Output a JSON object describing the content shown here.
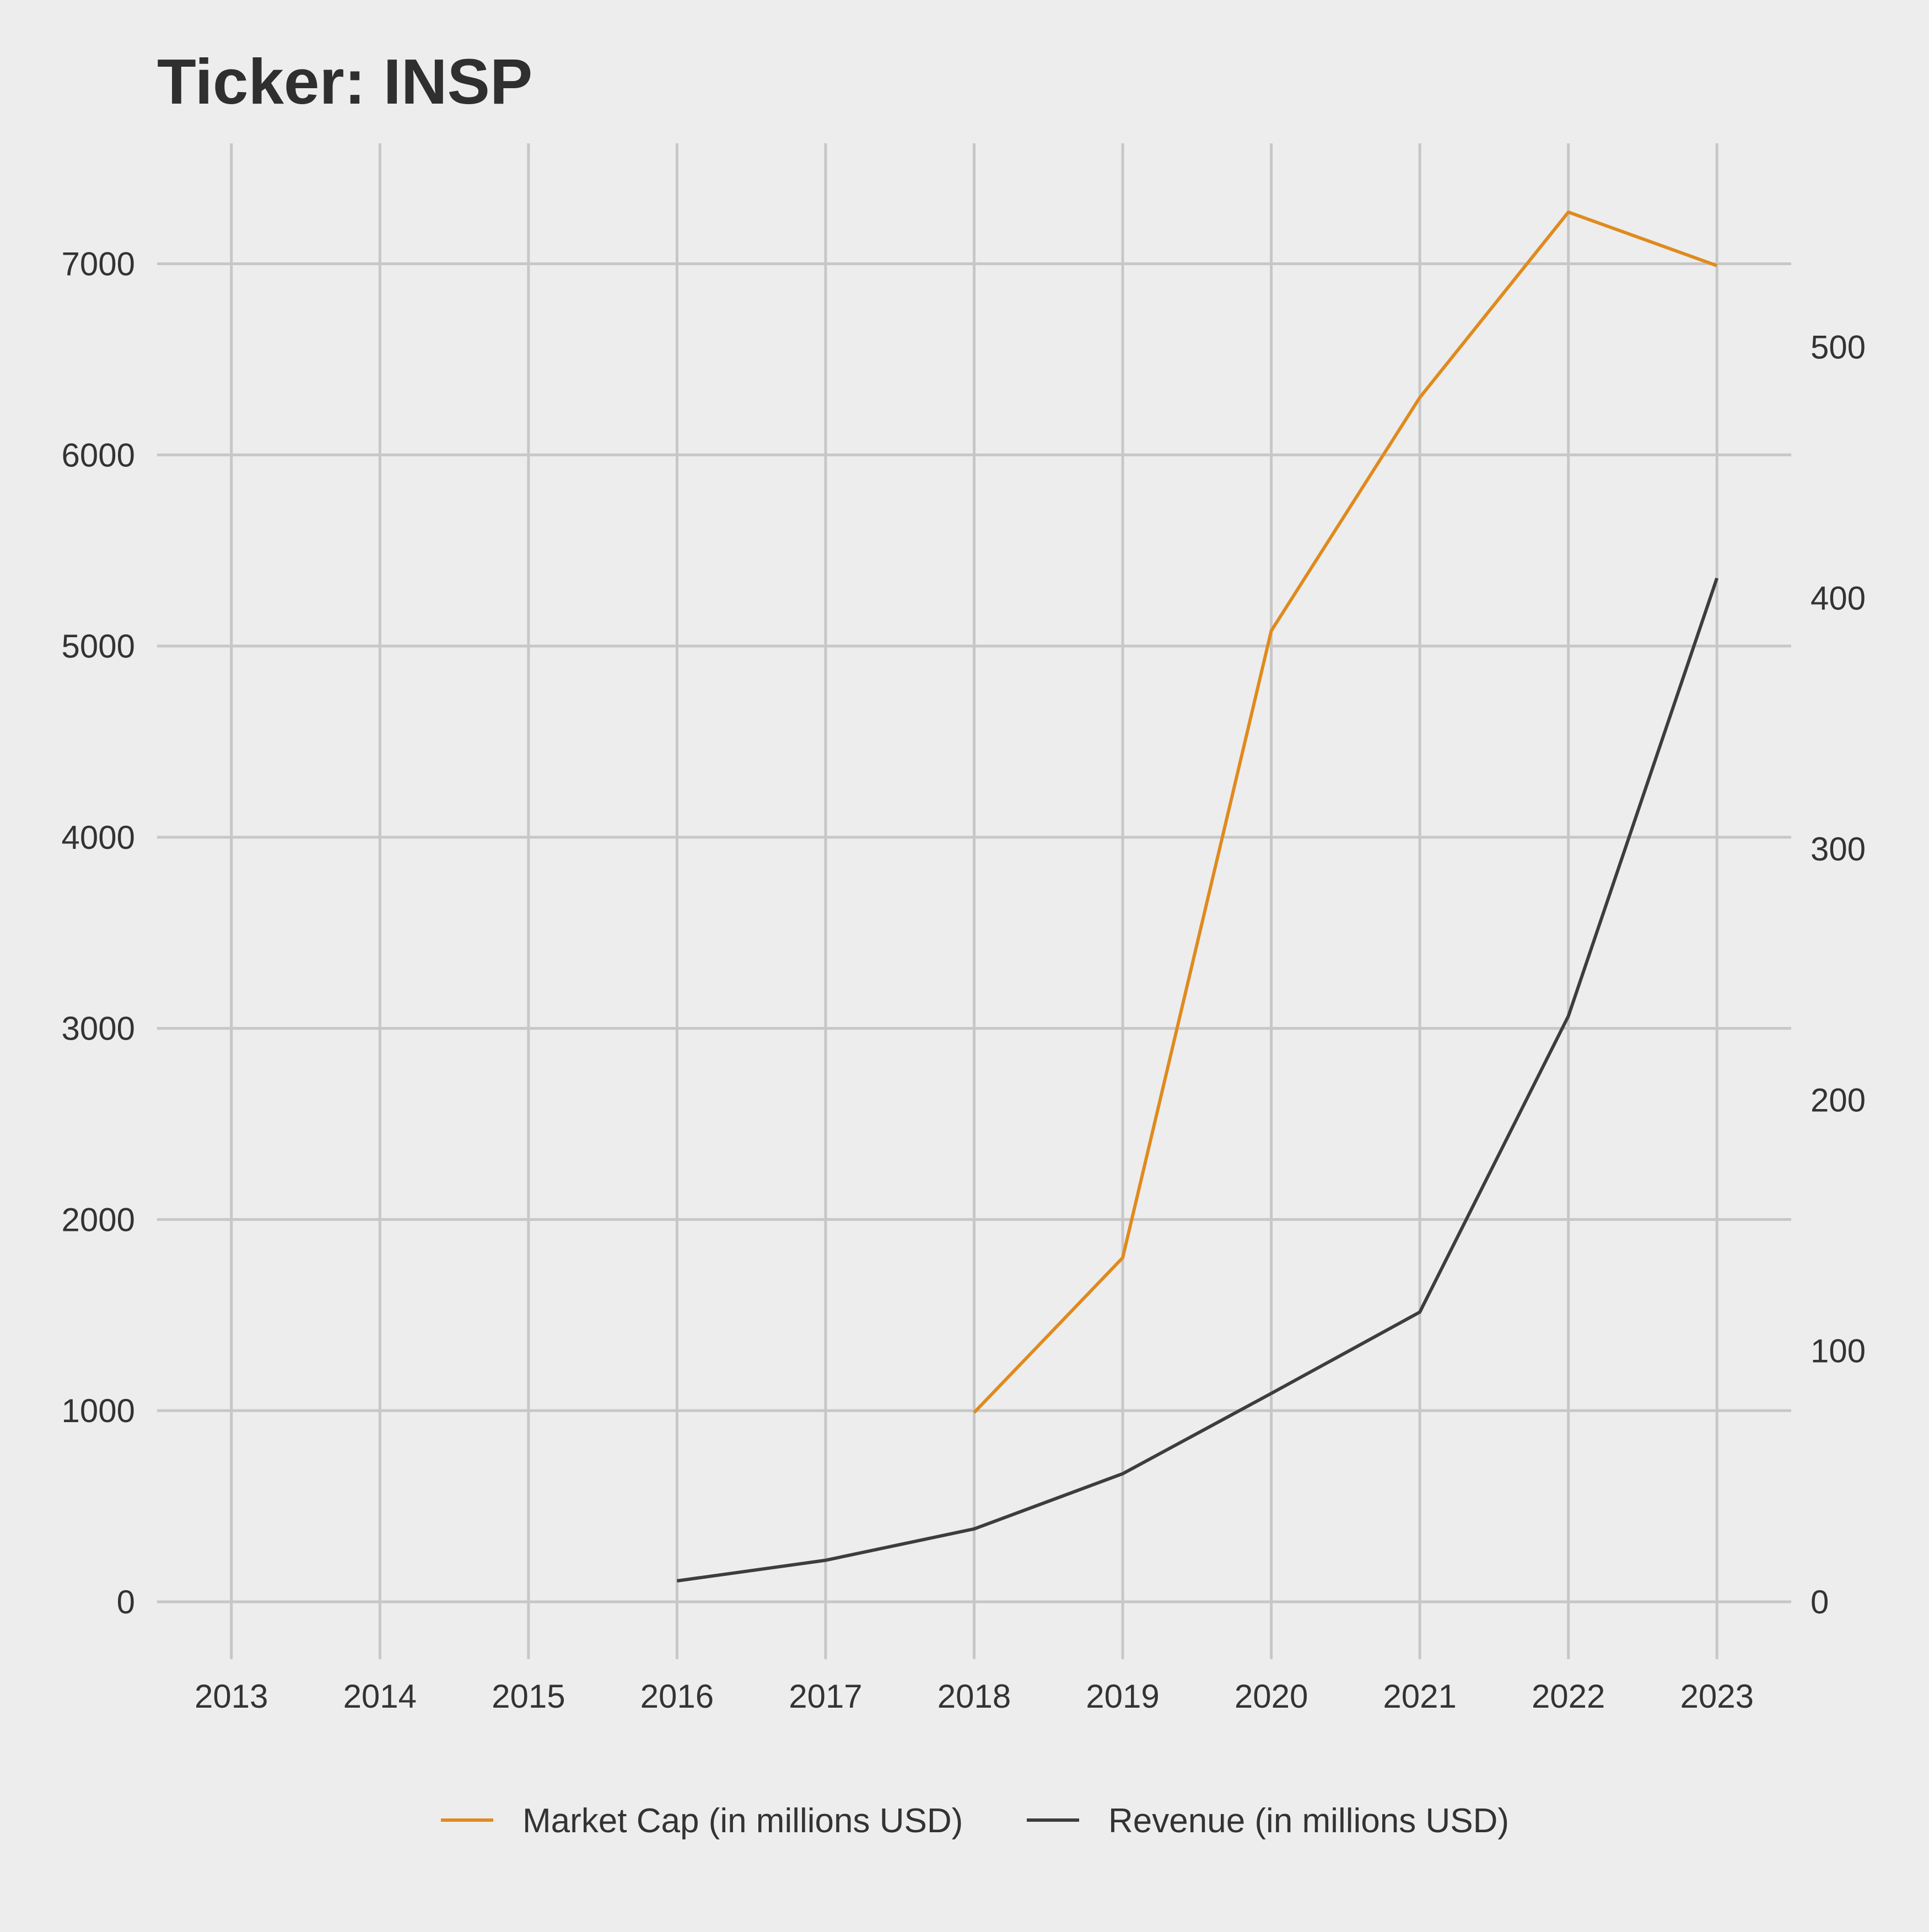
{
  "chart_data": {
    "type": "line",
    "title": "Ticker: INSP",
    "xlabel": "",
    "ylabel": "",
    "x": [
      2013,
      2014,
      2015,
      2016,
      2017,
      2018,
      2019,
      2020,
      2021,
      2022,
      2023
    ],
    "y_left_ticks": [
      0,
      1000,
      2000,
      3000,
      4000,
      5000,
      6000,
      7000
    ],
    "y_right_ticks": [
      0,
      100,
      200,
      300,
      400,
      500
    ],
    "ylim_left": [
      -300,
      7630
    ],
    "ylim_right": [
      -22.9,
      581.2
    ],
    "grid": true,
    "legend_position": "bottom",
    "colors": {
      "background": "#ededed",
      "grid": "#c7c7c7",
      "text": "#2f2f2f"
    },
    "series": [
      {
        "name": "Market Cap (in millions USD)",
        "axis": "left",
        "color": "#e08a1e",
        "x": [
          2018,
          2019,
          2020,
          2021,
          2022,
          2023
        ],
        "values": [
          990,
          1800,
          5080,
          6300,
          7270,
          6990
        ]
      },
      {
        "name": "Revenue (in millions USD)",
        "axis": "right",
        "color": "#3d3d3d",
        "x": [
          2016,
          2017,
          2018,
          2019,
          2020,
          2021,
          2022,
          2023
        ],
        "values": [
          8.3,
          16.5,
          29,
          51,
          83,
          115.4,
          233.4,
          407.9
        ]
      }
    ]
  }
}
